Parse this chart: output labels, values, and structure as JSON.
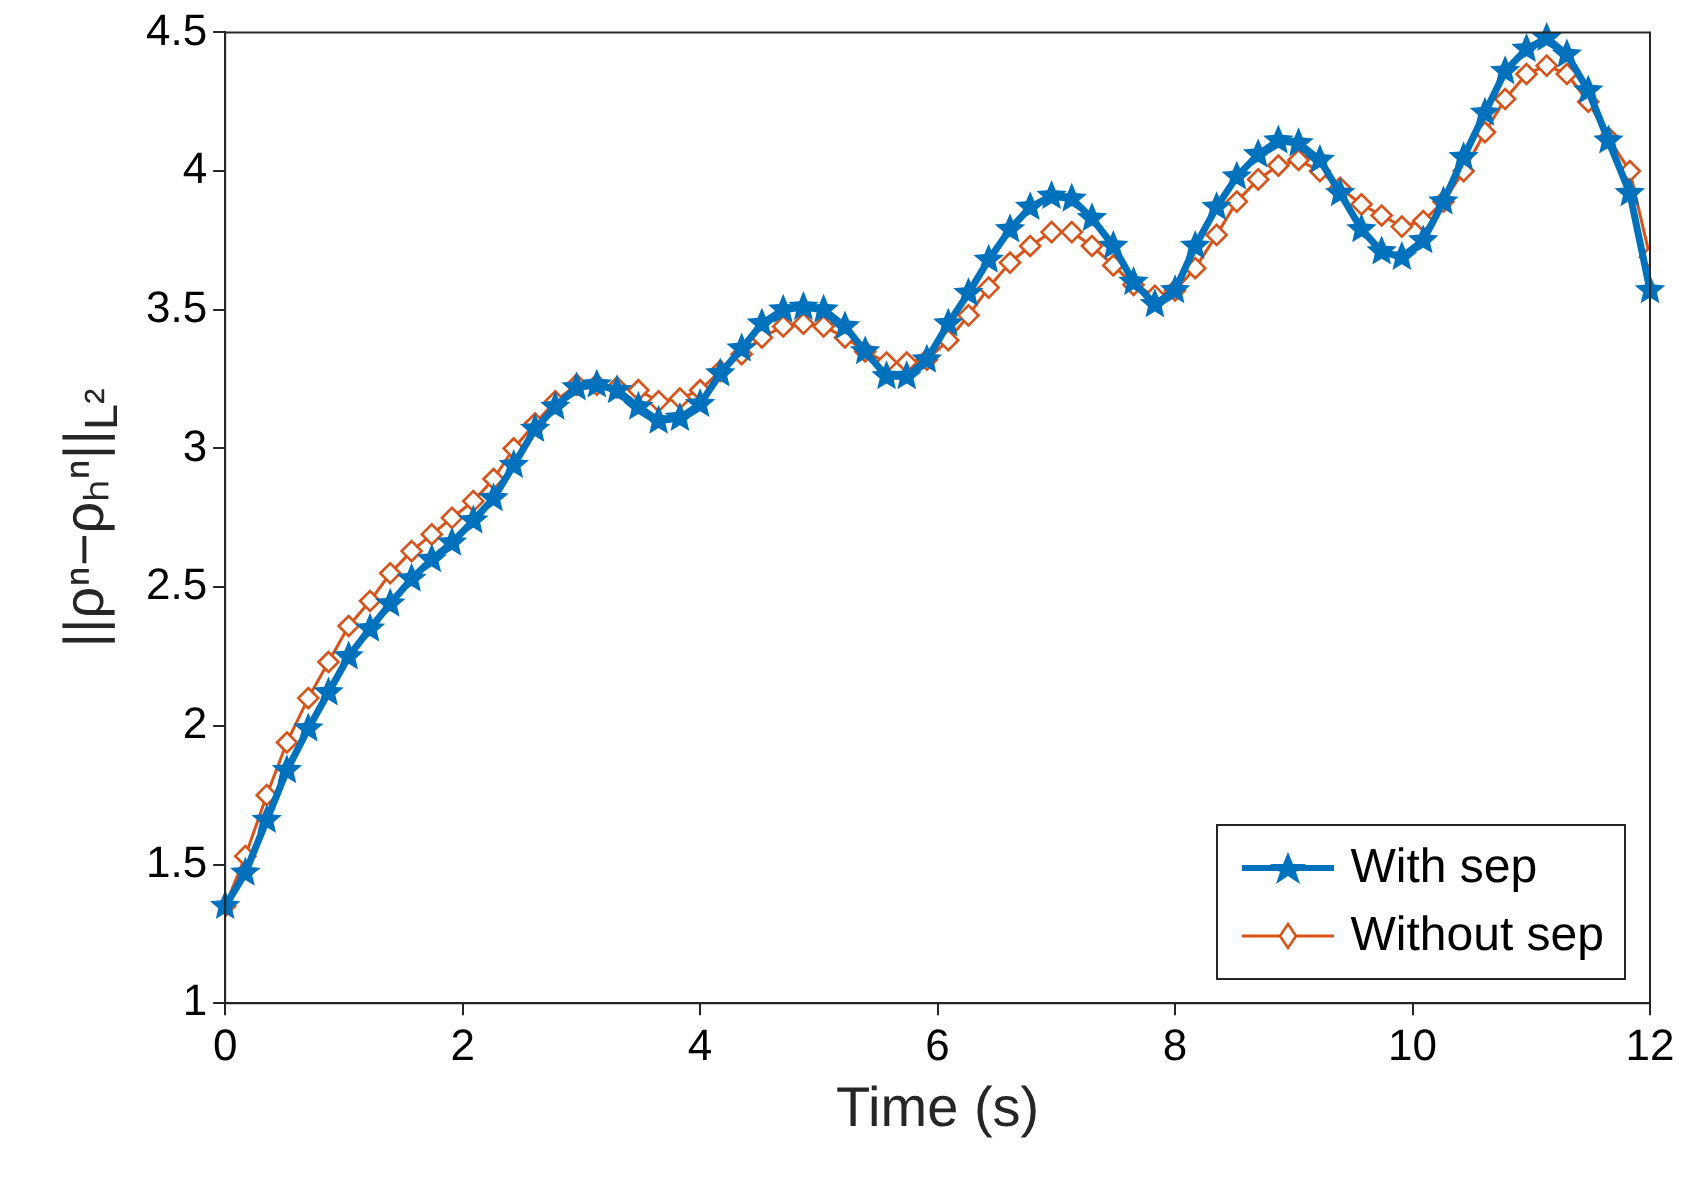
{
  "chart_data": {
    "type": "line",
    "xlabel": "Time (s)",
    "ylabel": "||ρⁿ−ρₕⁿ||$_{L²}$",
    "xlim": [
      0,
      12
    ],
    "xticks": [
      0,
      2,
      4,
      6,
      8,
      10,
      12
    ],
    "ylim": [
      1,
      4.5
    ],
    "yticks": [
      1,
      1.5,
      2,
      2.5,
      3,
      3.5,
      4,
      4.5
    ],
    "grid": false,
    "legend": "bottom right",
    "line_style": "solid",
    "x": [
      0,
      0.17,
      0.35,
      0.52,
      0.7,
      0.87,
      1.04,
      1.22,
      1.39,
      1.57,
      1.74,
      1.91,
      2.09,
      2.26,
      2.43,
      2.61,
      2.78,
      2.96,
      3.13,
      3.3,
      3.48,
      3.65,
      3.83,
      4.0,
      4.17,
      4.35,
      4.52,
      4.7,
      4.87,
      5.04,
      5.22,
      5.39,
      5.57,
      5.74,
      5.91,
      6.09,
      6.26,
      6.43,
      6.61,
      6.78,
      6.96,
      7.13,
      7.3,
      7.48,
      7.65,
      7.83,
      8.0,
      8.17,
      8.35,
      8.52,
      8.7,
      8.87,
      9.04,
      9.22,
      9.39,
      9.57,
      9.74,
      9.91,
      10.09,
      10.26,
      10.43,
      10.61,
      10.78,
      10.96,
      11.13,
      11.3,
      11.48,
      11.65,
      11.83,
      12
    ],
    "series": [
      {
        "name": "With sep",
        "color": "#0072bd",
        "marker": "star",
        "values": [
          1.35,
          1.47,
          1.66,
          1.84,
          1.99,
          2.12,
          2.25,
          2.35,
          2.44,
          2.53,
          2.6,
          2.66,
          2.74,
          2.82,
          2.94,
          3.07,
          3.15,
          3.22,
          3.23,
          3.21,
          3.15,
          3.1,
          3.11,
          3.16,
          3.27,
          3.36,
          3.45,
          3.5,
          3.51,
          3.5,
          3.44,
          3.35,
          3.26,
          3.26,
          3.32,
          3.45,
          3.56,
          3.68,
          3.79,
          3.87,
          3.91,
          3.9,
          3.83,
          3.73,
          3.6,
          3.52,
          3.57,
          3.73,
          3.87,
          3.98,
          4.06,
          4.11,
          4.1,
          4.04,
          3.92,
          3.79,
          3.71,
          3.69,
          3.75,
          3.89,
          4.05,
          4.21,
          4.36,
          4.44,
          4.48,
          4.42,
          4.29,
          4.11,
          3.92,
          3.57
        ]
      },
      {
        "name": "Without sep",
        "color": "#d95319",
        "marker": "diamond",
        "values": [
          1.35,
          1.53,
          1.75,
          1.94,
          2.1,
          2.23,
          2.36,
          2.45,
          2.55,
          2.63,
          2.69,
          2.75,
          2.81,
          2.89,
          3.0,
          3.09,
          3.17,
          3.23,
          3.23,
          3.22,
          3.21,
          3.17,
          3.18,
          3.21,
          3.28,
          3.34,
          3.4,
          3.44,
          3.45,
          3.44,
          3.4,
          3.35,
          3.31,
          3.31,
          3.32,
          3.39,
          3.48,
          3.58,
          3.67,
          3.73,
          3.78,
          3.78,
          3.73,
          3.66,
          3.59,
          3.55,
          3.57,
          3.65,
          3.77,
          3.89,
          3.97,
          4.02,
          4.04,
          4.0,
          3.94,
          3.88,
          3.84,
          3.8,
          3.82,
          3.89,
          4.0,
          4.14,
          4.26,
          4.35,
          4.38,
          4.35,
          4.25,
          4.12,
          4.0,
          3.69
        ]
      }
    ]
  }
}
